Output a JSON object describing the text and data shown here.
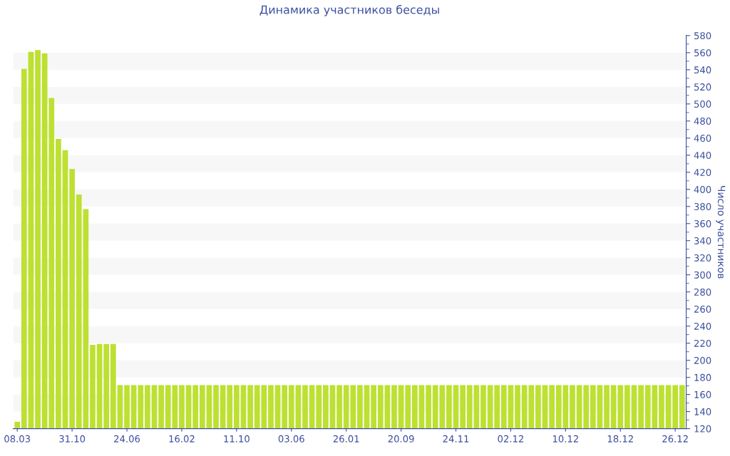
{
  "chart_data": {
    "type": "bar",
    "title": "Динамика участников беседы",
    "ylabel": "Число участников",
    "categories": [
      "08.03",
      null,
      null,
      null,
      null,
      null,
      null,
      null,
      "31.10",
      null,
      null,
      null,
      null,
      null,
      null,
      null,
      "24.06",
      null,
      null,
      null,
      null,
      null,
      null,
      null,
      "16.02",
      null,
      null,
      null,
      null,
      null,
      null,
      null,
      "11.10",
      null,
      null,
      null,
      null,
      null,
      null,
      null,
      "03.06",
      null,
      null,
      null,
      null,
      null,
      null,
      null,
      "26.01",
      null,
      null,
      null,
      null,
      null,
      null,
      null,
      "20.09",
      null,
      null,
      null,
      null,
      null,
      null,
      null,
      "24.11",
      null,
      null,
      null,
      null,
      null,
      null,
      null,
      "02.12",
      null,
      null,
      null,
      null,
      null,
      null,
      null,
      "10.12",
      null,
      null,
      null,
      null,
      null,
      null,
      null,
      "18.12",
      null,
      null,
      null,
      null,
      null,
      null,
      null,
      "26.12",
      null
    ],
    "values": [
      128,
      541,
      561,
      563,
      559,
      507,
      459,
      446,
      424,
      394,
      377,
      218,
      219,
      219,
      219,
      171,
      171,
      171,
      171,
      171,
      171,
      171,
      171,
      171,
      171,
      171,
      171,
      171,
      171,
      171,
      171,
      171,
      171,
      171,
      171,
      171,
      171,
      171,
      171,
      171,
      171,
      171,
      171,
      171,
      171,
      171,
      171,
      171,
      171,
      171,
      171,
      171,
      171,
      171,
      171,
      171,
      171,
      171,
      171,
      171,
      171,
      171,
      171,
      171,
      171,
      171,
      171,
      171,
      171,
      171,
      171,
      171,
      171,
      171,
      171,
      171,
      171,
      171,
      171,
      171,
      171,
      171,
      171,
      171,
      171,
      171,
      171,
      171,
      171,
      171,
      171,
      171,
      171,
      171,
      171,
      171,
      171,
      171
    ],
    "color": "#bde031",
    "ylim": [
      120,
      580
    ],
    "yticks": [
      120,
      140,
      160,
      180,
      200,
      220,
      240,
      260,
      280,
      300,
      320,
      340,
      360,
      380,
      400,
      420,
      440,
      460,
      480,
      500,
      520,
      540,
      560,
      580
    ],
    "bands": [
      {
        "axis": "y",
        "from": 140,
        "to": 160,
        "color": "#f7f7f7"
      },
      {
        "axis": "y",
        "from": 180,
        "to": 200,
        "color": "#f7f7f7"
      },
      {
        "axis": "y",
        "from": 220,
        "to": 240,
        "color": "#f7f7f7"
      },
      {
        "axis": "y",
        "from": 260,
        "to": 280,
        "color": "#f7f7f7"
      },
      {
        "axis": "y",
        "from": 300,
        "to": 320,
        "color": "#f7f7f7"
      },
      {
        "axis": "y",
        "from": 340,
        "to": 360,
        "color": "#f7f7f7"
      },
      {
        "axis": "y",
        "from": 380,
        "to": 400,
        "color": "#f7f7f7"
      },
      {
        "axis": "y",
        "from": 420,
        "to": 440,
        "color": "#f7f7f7"
      },
      {
        "axis": "y",
        "from": 460,
        "to": 480,
        "color": "#f7f7f7"
      },
      {
        "axis": "y",
        "from": 500,
        "to": 520,
        "color": "#f7f7f7"
      },
      {
        "axis": "y",
        "from": 540,
        "to": 560,
        "color": "#f7f7f7"
      }
    ]
  }
}
